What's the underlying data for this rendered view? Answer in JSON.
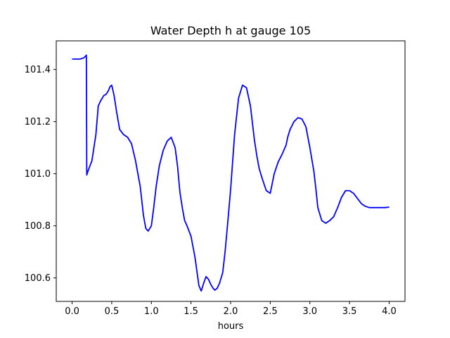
{
  "chart_data": {
    "type": "line",
    "title": "Water Depth h at gauge 105",
    "xlabel": "hours",
    "ylabel": "",
    "xlim": [
      -0.2,
      4.2
    ],
    "ylim": [
      100.51,
      101.51
    ],
    "xticks": [
      "0.0",
      "0.5",
      "1.0",
      "1.5",
      "2.0",
      "2.5",
      "3.0",
      "3.5",
      "4.0"
    ],
    "yticks": [
      "100.6",
      "100.8",
      "101.0",
      "101.2",
      "101.4"
    ],
    "grid": false,
    "series": [
      {
        "color": "#0000ff",
        "x": [
          0.0,
          0.1,
          0.15,
          0.18,
          0.185,
          0.2,
          0.25,
          0.3,
          0.33,
          0.36,
          0.4,
          0.43,
          0.46,
          0.48,
          0.5,
          0.53,
          0.56,
          0.6,
          0.65,
          0.7,
          0.75,
          0.8,
          0.83,
          0.86,
          0.9,
          0.93,
          0.96,
          1.0,
          1.03,
          1.06,
          1.1,
          1.15,
          1.2,
          1.25,
          1.3,
          1.33,
          1.36,
          1.39,
          1.42,
          1.45,
          1.5,
          1.55,
          1.6,
          1.63,
          1.66,
          1.69,
          1.72,
          1.75,
          1.78,
          1.8,
          1.83,
          1.86,
          1.9,
          1.93,
          1.96,
          2.0,
          2.05,
          2.1,
          2.15,
          2.2,
          2.25,
          2.3,
          2.33,
          2.36,
          2.4,
          2.45,
          2.5,
          2.55,
          2.6,
          2.65,
          2.7,
          2.72,
          2.75,
          2.8,
          2.85,
          2.9,
          2.95,
          3.0,
          3.05,
          3.08,
          3.1,
          3.15,
          3.2,
          3.25,
          3.3,
          3.35,
          3.4,
          3.45,
          3.5,
          3.55,
          3.6,
          3.65,
          3.7,
          3.75,
          3.8,
          3.85,
          3.9,
          3.95,
          4.0
        ],
        "y": [
          101.44,
          101.44,
          101.445,
          101.455,
          100.995,
          101.01,
          101.05,
          101.15,
          101.26,
          101.28,
          101.3,
          101.305,
          101.32,
          101.335,
          101.34,
          101.3,
          101.24,
          101.17,
          101.15,
          101.14,
          101.115,
          101.05,
          101.0,
          100.95,
          100.84,
          100.79,
          100.78,
          100.8,
          100.87,
          100.95,
          101.03,
          101.09,
          101.125,
          101.14,
          101.1,
          101.03,
          100.93,
          100.87,
          100.82,
          100.8,
          100.76,
          100.68,
          100.57,
          100.55,
          100.58,
          100.605,
          100.595,
          100.575,
          100.56,
          100.553,
          100.56,
          100.58,
          100.62,
          100.7,
          100.8,
          100.94,
          101.15,
          101.29,
          101.34,
          101.33,
          101.26,
          101.13,
          101.07,
          101.02,
          100.98,
          100.935,
          100.925,
          101.0,
          101.045,
          101.075,
          101.11,
          101.14,
          101.17,
          101.2,
          101.215,
          101.21,
          101.18,
          101.1,
          101.01,
          100.93,
          100.87,
          100.82,
          100.81,
          100.82,
          100.835,
          100.87,
          100.91,
          100.935,
          100.935,
          100.925,
          100.905,
          100.885,
          100.875,
          100.87,
          100.87,
          100.87,
          100.87,
          100.87,
          100.872
        ]
      }
    ]
  }
}
